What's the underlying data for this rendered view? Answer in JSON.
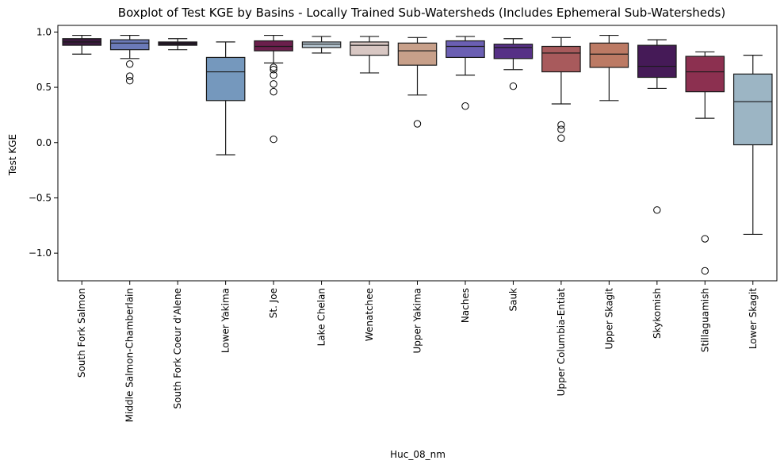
{
  "chart_data": {
    "type": "box",
    "title": "Boxplot of Test KGE by Basins - Locally Trained Sub-Watersheds (Includes Ephemeral Sub-Watersheds)",
    "xlabel": "Huc_08_nm",
    "ylabel": "Test KGE",
    "ylim": [
      -1.25,
      1.06
    ],
    "yticks": [
      -1.0,
      -0.5,
      0.0,
      0.5,
      1.0
    ],
    "ytick_labels": [
      "−1.0",
      "−0.5",
      "0.0",
      "0.5",
      "1.0"
    ],
    "grid": false,
    "categories": [
      "South Fork Salmon",
      "Middle Salmon-Chamberlain",
      "South Fork Coeur d'Alene",
      "Lower Yakima",
      "St. Joe",
      "Lake Chelan",
      "Wenatchee",
      "Upper Yakima",
      "Naches",
      "Sauk",
      "Upper Columbia-Entiat",
      "Upper Skagit",
      "Skykomish",
      "Stillaguamish",
      "Lower Skagit"
    ],
    "boxes": [
      {
        "min": 0.8,
        "q1": 0.88,
        "median": 0.91,
        "q3": 0.94,
        "max": 0.97,
        "outliers": [],
        "color": "#3b1a3e"
      },
      {
        "min": 0.76,
        "q1": 0.84,
        "median": 0.9,
        "q3": 0.93,
        "max": 0.97,
        "outliers": [
          0.71,
          0.6,
          0.56
        ],
        "color": "#6b7ab8"
      },
      {
        "min": 0.84,
        "q1": 0.88,
        "median": 0.895,
        "q3": 0.91,
        "max": 0.94,
        "outliers": [],
        "color": "#2a1630"
      },
      {
        "min": -0.11,
        "q1": 0.38,
        "median": 0.64,
        "q3": 0.77,
        "max": 0.91,
        "outliers": [],
        "color": "#7598bd"
      },
      {
        "min": 0.72,
        "q1": 0.83,
        "median": 0.87,
        "q3": 0.92,
        "max": 0.97,
        "outliers": [
          0.68,
          0.66,
          0.61,
          0.53,
          0.46,
          0.03
        ],
        "color": "#6b1f4c"
      },
      {
        "min": 0.81,
        "q1": 0.86,
        "median": 0.89,
        "q3": 0.91,
        "max": 0.96,
        "outliers": [],
        "color": "#b6c7d3"
      },
      {
        "min": 0.63,
        "q1": 0.79,
        "median": 0.88,
        "q3": 0.91,
        "max": 0.96,
        "outliers": [],
        "color": "#d8c7c3"
      },
      {
        "min": 0.43,
        "q1": 0.7,
        "median": 0.83,
        "q3": 0.9,
        "max": 0.95,
        "outliers": [
          0.17
        ],
        "color": "#c8a08a"
      },
      {
        "min": 0.61,
        "q1": 0.77,
        "median": 0.87,
        "q3": 0.92,
        "max": 0.96,
        "outliers": [
          0.33
        ],
        "color": "#6b5fb3"
      },
      {
        "min": 0.66,
        "q1": 0.76,
        "median": 0.86,
        "q3": 0.89,
        "max": 0.94,
        "outliers": [
          0.51
        ],
        "color": "#563086"
      },
      {
        "min": 0.35,
        "q1": 0.64,
        "median": 0.81,
        "q3": 0.87,
        "max": 0.95,
        "outliers": [
          0.16,
          0.12,
          0.04
        ],
        "color": "#a85a5c"
      },
      {
        "min": 0.38,
        "q1": 0.68,
        "median": 0.8,
        "q3": 0.9,
        "max": 0.97,
        "outliers": [],
        "color": "#bc7a64"
      },
      {
        "min": 0.49,
        "q1": 0.59,
        "median": 0.69,
        "q3": 0.88,
        "max": 0.93,
        "outliers": [
          -0.61
        ],
        "color": "#451a57"
      },
      {
        "min": 0.22,
        "q1": 0.46,
        "median": 0.64,
        "q3": 0.78,
        "max": 0.82,
        "outliers": [
          -0.87,
          -1.16
        ],
        "color": "#8c3050"
      },
      {
        "min": -0.83,
        "q1": -0.02,
        "median": 0.37,
        "q3": 0.62,
        "max": 0.79,
        "outliers": [],
        "color": "#9cb5c4"
      }
    ]
  }
}
